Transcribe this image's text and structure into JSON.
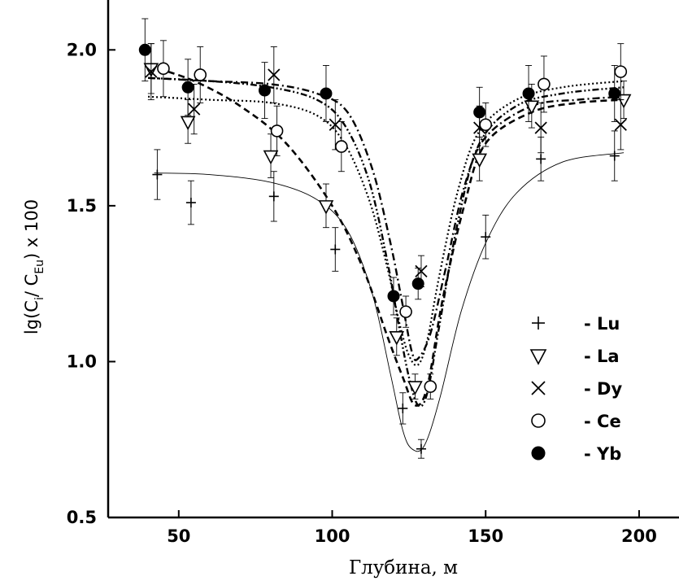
{
  "chart_data": {
    "type": "scatter",
    "xlabel": "Глубина, м",
    "ylabel_parts": [
      "lg(C",
      "i",
      "/ C",
      "Eu",
      ") x 100"
    ],
    "xlim": [
      27,
      213
    ],
    "ylim": [
      0.5,
      2.16
    ],
    "xticks": [
      50,
      100,
      150,
      200
    ],
    "yticks": [
      0.5,
      1.0,
      1.5,
      2.0
    ],
    "xtick_labels": [
      "50",
      "100",
      "150",
      "200"
    ],
    "ytick_labels": [
      "0.5",
      "1.0",
      "1.5",
      "2.0"
    ],
    "legend_position": "right",
    "series": [
      {
        "name": "- Lu",
        "marker": "plus",
        "line": "solid-thin",
        "points": [
          [
            43,
            1.6,
            0.08
          ],
          [
            54,
            1.51,
            0.07
          ],
          [
            81,
            1.53,
            0.08
          ],
          [
            101,
            1.36,
            0.07
          ],
          [
            123,
            0.85,
            0.05
          ],
          [
            129,
            0.72,
            0.03
          ],
          [
            150,
            1.4,
            0.07
          ],
          [
            168,
            1.65,
            0.07
          ],
          [
            192,
            1.66,
            0.08
          ]
        ],
        "fit": [
          [
            42,
            1.605
          ],
          [
            60,
            1.6
          ],
          [
            80,
            1.575
          ],
          [
            95,
            1.52
          ],
          [
            105,
            1.42
          ],
          [
            113,
            1.22
          ],
          [
            119,
            0.96
          ],
          [
            123,
            0.78
          ],
          [
            126,
            0.72
          ],
          [
            130,
            0.73
          ],
          [
            135,
            0.88
          ],
          [
            142,
            1.16
          ],
          [
            150,
            1.38
          ],
          [
            160,
            1.54
          ],
          [
            175,
            1.64
          ],
          [
            195,
            1.67
          ]
        ]
      },
      {
        "name": "- La",
        "marker": "triangle-down",
        "line": "dashed",
        "points": [
          [
            41,
            1.94,
            0.08
          ],
          [
            53,
            1.77,
            0.07
          ],
          [
            80,
            1.66,
            0.07
          ],
          [
            98,
            1.5,
            0.07
          ],
          [
            121,
            1.08,
            0.06
          ],
          [
            127,
            0.92,
            0.04
          ],
          [
            148,
            1.65,
            0.07
          ],
          [
            165,
            1.82,
            0.07
          ],
          [
            195,
            1.84,
            0.06
          ]
        ],
        "fit": [
          [
            40,
            1.95
          ],
          [
            55,
            1.9
          ],
          [
            70,
            1.82
          ],
          [
            85,
            1.7
          ],
          [
            100,
            1.5
          ],
          [
            110,
            1.3
          ],
          [
            118,
            1.08
          ],
          [
            123,
            0.95
          ],
          [
            127,
            0.86
          ],
          [
            131,
            0.92
          ],
          [
            136,
            1.2
          ],
          [
            143,
            1.5
          ],
          [
            150,
            1.7
          ],
          [
            165,
            1.8
          ],
          [
            180,
            1.83
          ],
          [
            195,
            1.84
          ]
        ]
      },
      {
        "name": "- Dy",
        "marker": "x",
        "line": "dash-dot",
        "points": [
          [
            41,
            1.93,
            0.09
          ],
          [
            55,
            1.81,
            0.08
          ],
          [
            81,
            1.92,
            0.09
          ],
          [
            101,
            1.76,
            0.08
          ],
          [
            129,
            1.29,
            0.05
          ],
          [
            148,
            1.75,
            0.07
          ],
          [
            168,
            1.75,
            0.08
          ],
          [
            194,
            1.76,
            0.08
          ]
        ],
        "fit": [
          [
            40,
            1.91
          ],
          [
            60,
            1.9
          ],
          [
            80,
            1.89
          ],
          [
            95,
            1.86
          ],
          [
            105,
            1.8
          ],
          [
            113,
            1.62
          ],
          [
            119,
            1.38
          ],
          [
            123,
            1.18
          ],
          [
            126,
            1.03
          ],
          [
            128,
            1.01
          ],
          [
            132,
            1.09
          ],
          [
            137,
            1.3
          ],
          [
            143,
            1.56
          ],
          [
            150,
            1.72
          ],
          [
            165,
            1.82
          ],
          [
            180,
            1.84
          ],
          [
            195,
            1.85
          ]
        ]
      },
      {
        "name": "- Ce",
        "marker": "circle-open",
        "line": "dotted",
        "points": [
          [
            45,
            1.94,
            0.09
          ],
          [
            57,
            1.92,
            0.09
          ],
          [
            82,
            1.74,
            0.08
          ],
          [
            103,
            1.69,
            0.08
          ],
          [
            124,
            1.16,
            0.05
          ],
          [
            132,
            0.92,
            0.04
          ],
          [
            150,
            1.76,
            0.07
          ],
          [
            169,
            1.89,
            0.09
          ],
          [
            194,
            1.93,
            0.09
          ]
        ],
        "fit": [
          [
            40,
            1.85
          ],
          [
            60,
            1.84
          ],
          [
            80,
            1.83
          ],
          [
            95,
            1.79
          ],
          [
            104,
            1.7
          ],
          [
            112,
            1.52
          ],
          [
            118,
            1.3
          ],
          [
            122,
            1.12
          ],
          [
            125,
            1.02
          ],
          [
            128,
            0.99
          ],
          [
            131,
            1.07
          ],
          [
            135,
            1.28
          ],
          [
            141,
            1.55
          ],
          [
            148,
            1.74
          ],
          [
            160,
            1.84
          ],
          [
            175,
            1.88
          ],
          [
            195,
            1.9
          ]
        ]
      },
      {
        "name": "- Yb",
        "marker": "circle-filled",
        "line": "dash-dot-dot",
        "points": [
          [
            39,
            2.0,
            0.1
          ],
          [
            53,
            1.88,
            0.09
          ],
          [
            78,
            1.87,
            0.09
          ],
          [
            98,
            1.86,
            0.09
          ],
          [
            120,
            1.21,
            0.06
          ],
          [
            128,
            1.25,
            0.05
          ],
          [
            148,
            1.8,
            0.08
          ],
          [
            164,
            1.86,
            0.09
          ],
          [
            192,
            1.86,
            0.09
          ]
        ],
        "fit": [
          [
            40,
            1.91
          ],
          [
            60,
            1.9
          ],
          [
            80,
            1.88
          ],
          [
            95,
            1.84
          ],
          [
            104,
            1.76
          ],
          [
            112,
            1.58
          ],
          [
            118,
            1.32
          ],
          [
            122,
            1.1
          ],
          [
            125,
            0.95
          ],
          [
            128,
            0.86
          ],
          [
            131,
            0.9
          ],
          [
            135,
            1.12
          ],
          [
            141,
            1.45
          ],
          [
            148,
            1.7
          ],
          [
            160,
            1.82
          ],
          [
            175,
            1.86
          ],
          [
            195,
            1.88
          ]
        ]
      }
    ]
  }
}
